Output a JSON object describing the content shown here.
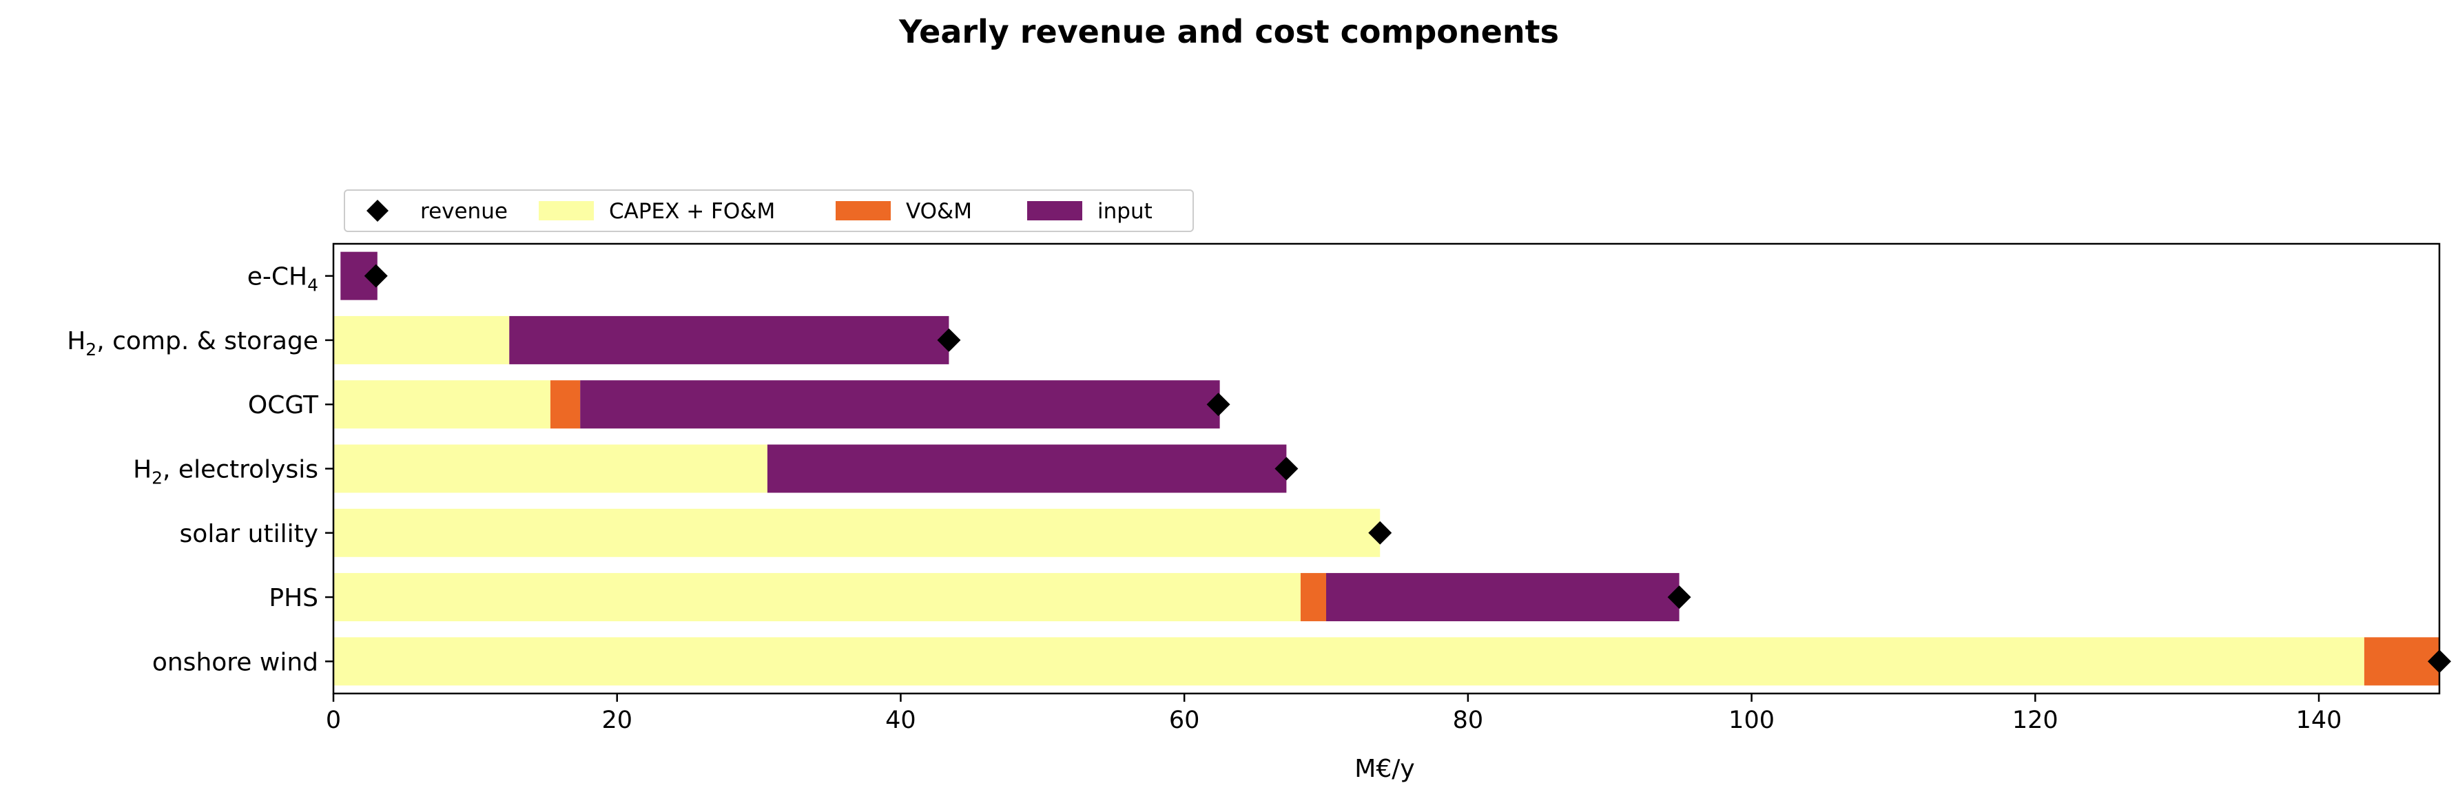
{
  "chart_data": {
    "type": "bar",
    "orientation": "horizontal",
    "stacked": true,
    "title": "Yearly revenue and cost components",
    "xlabel": "M€/y",
    "ylabel": "",
    "xlim": [
      0,
      148.5
    ],
    "xticks": [
      0,
      20,
      40,
      60,
      80,
      100,
      120,
      140
    ],
    "grid": false,
    "legend_position": "top-left, above plot",
    "categories": [
      {
        "label": "e-CH",
        "sub": "4",
        "tail": ""
      },
      {
        "label": "H",
        "sub": "2",
        "tail": ", comp. & storage"
      },
      {
        "label": "OCGT",
        "sub": "",
        "tail": ""
      },
      {
        "label": "H",
        "sub": "2",
        "tail": ", electrolysis"
      },
      {
        "label": "solar utility",
        "sub": "",
        "tail": ""
      },
      {
        "label": "PHS",
        "sub": "",
        "tail": ""
      },
      {
        "label": "onshore wind",
        "sub": "",
        "tail": ""
      }
    ],
    "series": [
      {
        "name": "CAPEX + FO&M",
        "color": "#fcfea4",
        "values": [
          0,
          12.4,
          15.3,
          30.6,
          73.8,
          68.2,
          143.2
        ]
      },
      {
        "name": "VO&M",
        "color": "#ed6925",
        "values": [
          0,
          0,
          2.1,
          0,
          0,
          1.8,
          5.3
        ]
      },
      {
        "name": "input",
        "color": "#781c6d",
        "values": [
          2.6,
          31.0,
          45.1,
          36.6,
          0,
          24.9,
          0
        ]
      }
    ],
    "bar_offsets": [
      0.5,
      0,
      0,
      0,
      0,
      0,
      0
    ],
    "revenue": {
      "name": "revenue",
      "color": "#000000",
      "marker": "diamond",
      "values": [
        3.0,
        43.4,
        62.4,
        67.2,
        73.8,
        94.9,
        148.5
      ]
    }
  }
}
